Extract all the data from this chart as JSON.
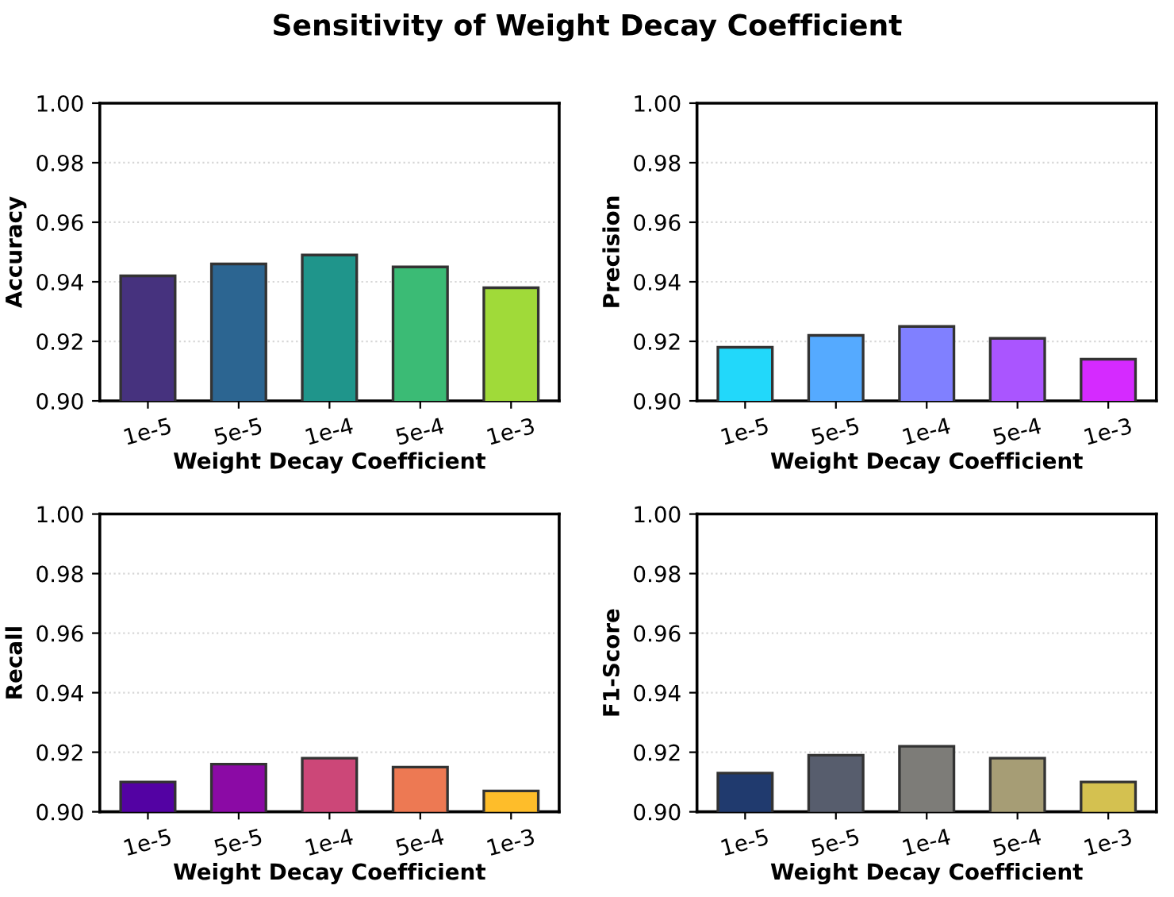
{
  "chart_data": [
    {
      "type": "bar",
      "title": "Sensitivity of Weight Decay Coefficient",
      "xlabel": "Weight Decay Coefficient",
      "ylabel": "Accuracy",
      "categories": [
        "1e-5",
        "5e-5",
        "1e-4",
        "5e-4",
        "1e-3"
      ],
      "values": [
        0.942,
        0.946,
        0.949,
        0.945,
        0.938
      ],
      "colors": [
        "#46327e",
        "#2c6591",
        "#1f958b",
        "#3bbb75",
        "#a0da39"
      ],
      "ylim": [
        0.9,
        1.0
      ],
      "yticks": [
        {
          "value": 0.9,
          "label": "0.90"
        },
        {
          "value": 0.92,
          "label": "0.92"
        },
        {
          "value": 0.94,
          "label": "0.94"
        },
        {
          "value": 0.96,
          "label": "0.96"
        },
        {
          "value": 0.98,
          "label": "0.98"
        },
        {
          "value": 1.0,
          "label": "1.00"
        }
      ],
      "grid": "y"
    },
    {
      "type": "bar",
      "xlabel": "Weight Decay Coefficient",
      "ylabel": "Precision",
      "categories": [
        "1e-5",
        "5e-5",
        "1e-4",
        "5e-4",
        "1e-3"
      ],
      "values": [
        0.918,
        0.922,
        0.925,
        0.921,
        0.914
      ],
      "colors": [
        "#22d8fa",
        "#55aaff",
        "#8080ff",
        "#aa55ff",
        "#d52aff"
      ],
      "ylim": [
        0.9,
        1.0
      ],
      "yticks": [
        {
          "value": 0.9,
          "label": "0.90"
        },
        {
          "value": 0.92,
          "label": "0.92"
        },
        {
          "value": 0.94,
          "label": "0.94"
        },
        {
          "value": 0.96,
          "label": "0.96"
        },
        {
          "value": 0.98,
          "label": "0.98"
        },
        {
          "value": 1.0,
          "label": "1.00"
        }
      ],
      "grid": "y"
    },
    {
      "type": "bar",
      "xlabel": "Weight Decay Coefficient",
      "ylabel": "Recall",
      "categories": [
        "1e-5",
        "5e-5",
        "1e-4",
        "5e-4",
        "1e-3"
      ],
      "values": [
        0.91,
        0.916,
        0.918,
        0.915,
        0.907
      ],
      "colors": [
        "#5302a3",
        "#8b0aa5",
        "#cc4778",
        "#ed7953",
        "#febd2a"
      ],
      "ylim": [
        0.9,
        1.0
      ],
      "yticks": [
        {
          "value": 0.9,
          "label": "0.90"
        },
        {
          "value": 0.92,
          "label": "0.92"
        },
        {
          "value": 0.94,
          "label": "0.94"
        },
        {
          "value": 0.96,
          "label": "0.96"
        },
        {
          "value": 0.98,
          "label": "0.98"
        },
        {
          "value": 1.0,
          "label": "1.00"
        }
      ],
      "grid": "y"
    },
    {
      "type": "bar",
      "xlabel": "Weight Decay Coefficient",
      "ylabel": "F1-Score",
      "categories": [
        "1e-5",
        "5e-5",
        "1e-4",
        "5e-4",
        "1e-3"
      ],
      "values": [
        0.913,
        0.919,
        0.922,
        0.918,
        0.91
      ],
      "colors": [
        "#203a6e",
        "#575d6d",
        "#7d7c78",
        "#a69d75",
        "#d4c150"
      ],
      "ylim": [
        0.9,
        1.0
      ],
      "yticks": [
        {
          "value": 0.9,
          "label": "0.90"
        },
        {
          "value": 0.92,
          "label": "0.92"
        },
        {
          "value": 0.94,
          "label": "0.94"
        },
        {
          "value": 0.96,
          "label": "0.96"
        },
        {
          "value": 0.98,
          "label": "0.98"
        },
        {
          "value": 1.0,
          "label": "1.00"
        }
      ],
      "grid": "y"
    }
  ]
}
